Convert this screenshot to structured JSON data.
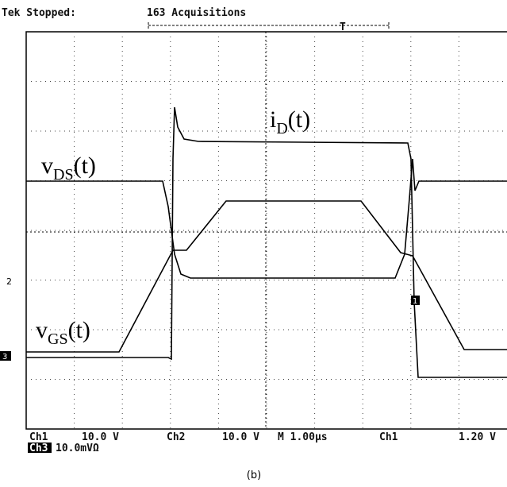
{
  "header": {
    "status": "Tek Stopped:",
    "acquisitions": "163 Acquisitions",
    "trigger_marker": "T"
  },
  "traces": [
    {
      "base": "i",
      "sub": "D",
      "suffix": "(t)"
    },
    {
      "base": "v",
      "sub": "DS",
      "suffix": "(t)"
    },
    {
      "base": "v",
      "sub": "GS",
      "suffix": "(t)"
    }
  ],
  "markers": {
    "left": "3",
    "right": "1",
    "center": "2"
  },
  "status_bar": {
    "ch1": "Ch1",
    "ch1_scale": "10.0 V",
    "ch2": "Ch2",
    "ch2_scale": "10.0 V",
    "time": "M 1.00µs",
    "trig_ch": "Ch1",
    "trig_level": "1.20 V",
    "ch3": "Ch3",
    "ch3_scale": "10.0mVΩ"
  },
  "caption": "(b)"
}
